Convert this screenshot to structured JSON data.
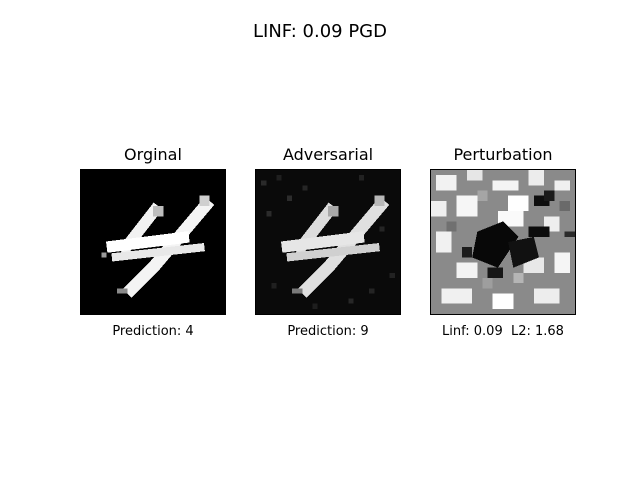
{
  "figure": {
    "title": "LINF: 0.09 PGD"
  },
  "panels": {
    "original": {
      "title": "Orginal",
      "caption": "Prediction: 4"
    },
    "adversarial": {
      "title": "Adversarial",
      "caption": "Prediction: 9"
    },
    "perturbation": {
      "title": "Perturbation",
      "caption": "Linf: 0.09  L2: 1.68"
    }
  },
  "colors": {
    "background": "#ffffff",
    "digit_dark": "#000000",
    "digit_light": "#ffffff",
    "perturbation_mid": "#888888"
  }
}
